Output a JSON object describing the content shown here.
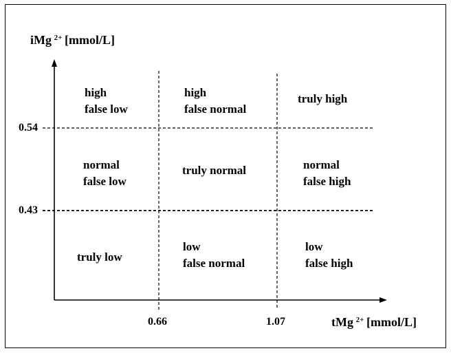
{
  "diagram": {
    "y_axis_label": {
      "prefix": "iMg",
      "superscript": "2+",
      "unit": "[mmol/L]"
    },
    "x_axis_label": {
      "prefix": "tMg",
      "superscript": "2+",
      "unit": "[mmol/L]"
    },
    "y_ticks": [
      "0.54",
      "0.43"
    ],
    "x_ticks": [
      "0.66",
      "1.07"
    ],
    "cells": {
      "top_left": [
        "high",
        "false low"
      ],
      "top_middle": [
        "high",
        "false normal"
      ],
      "top_right": [
        "truly high"
      ],
      "middle_left": [
        "normal",
        "false low"
      ],
      "middle_middle": [
        "truly normal"
      ],
      "middle_right": [
        "normal",
        "false high"
      ],
      "bottom_left": [
        "truly low"
      ],
      "bottom_middle": [
        "low",
        "false normal"
      ],
      "bottom_right": [
        "low",
        "false high"
      ]
    }
  }
}
